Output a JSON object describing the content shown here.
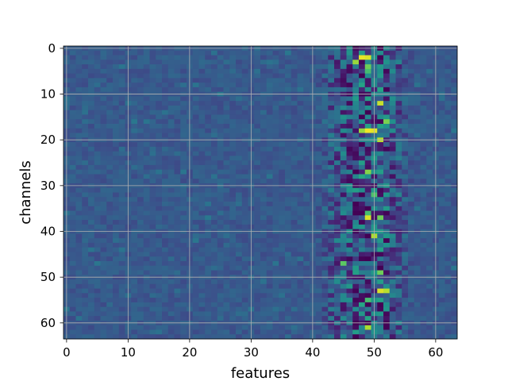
{
  "chart_data": {
    "type": "heatmap",
    "title": "",
    "xlabel": "features",
    "ylabel": "channels",
    "xlim": [
      -0.5,
      63.5
    ],
    "ylim": [
      63.5,
      -0.5
    ],
    "x_ticks": [
      0,
      10,
      20,
      30,
      40,
      50,
      60
    ],
    "y_ticks": [
      0,
      10,
      20,
      30,
      40,
      50,
      60
    ],
    "grid": true,
    "colormap": "viridis",
    "n_rows": 64,
    "n_cols": 64,
    "value_range": [
      0,
      1
    ],
    "background_level": 0.28,
    "high_variance_columns": [
      41,
      56
    ],
    "column_profile": {
      "41": 0.18,
      "42": 0.28,
      "43": 0.42,
      "44": 0.55,
      "45": 0.62,
      "46": 0.72,
      "47": 0.8,
      "48": 0.88,
      "49": 0.85,
      "50": 0.7,
      "51": 0.82,
      "52": 0.75,
      "53": 0.6,
      "54": 0.45,
      "55": 0.3,
      "56": 0.18
    },
    "bright_cells": [
      {
        "row": 2,
        "col": 48,
        "value": 0.97
      },
      {
        "row": 2,
        "col": 49,
        "value": 0.95
      },
      {
        "row": 3,
        "col": 47,
        "value": 0.85
      },
      {
        "row": 4,
        "col": 49,
        "value": 0.78
      },
      {
        "row": 5,
        "col": 49,
        "value": 0.7
      },
      {
        "row": 12,
        "col": 51,
        "value": 0.92
      },
      {
        "row": 16,
        "col": 52,
        "value": 0.8
      },
      {
        "row": 18,
        "col": 49,
        "value": 0.98
      },
      {
        "row": 18,
        "col": 50,
        "value": 0.96
      },
      {
        "row": 18,
        "col": 48,
        "value": 0.85
      },
      {
        "row": 20,
        "col": 51,
        "value": 0.9
      },
      {
        "row": 27,
        "col": 49,
        "value": 0.82
      },
      {
        "row": 32,
        "col": 50,
        "value": 0.72
      },
      {
        "row": 36,
        "col": 49,
        "value": 0.7
      },
      {
        "row": 37,
        "col": 49,
        "value": 0.95
      },
      {
        "row": 37,
        "col": 51,
        "value": 0.78
      },
      {
        "row": 41,
        "col": 50,
        "value": 0.88
      },
      {
        "row": 47,
        "col": 45,
        "value": 0.75
      },
      {
        "row": 49,
        "col": 51,
        "value": 0.78
      },
      {
        "row": 53,
        "col": 51,
        "value": 0.95
      },
      {
        "row": 53,
        "col": 52,
        "value": 0.9
      },
      {
        "row": 55,
        "col": 49,
        "value": 0.7
      },
      {
        "row": 61,
        "col": 49,
        "value": 0.88
      }
    ],
    "dark_cells": [
      {
        "row": 0,
        "col": 51,
        "value": 0.0
      },
      {
        "row": 3,
        "col": 48,
        "value": 0.02
      },
      {
        "row": 4,
        "col": 46,
        "value": 0.05
      },
      {
        "row": 7,
        "col": 45,
        "value": 0.04
      },
      {
        "row": 16,
        "col": 50,
        "value": 0.05
      },
      {
        "row": 35,
        "col": 47,
        "value": 0.03
      },
      {
        "row": 38,
        "col": 48,
        "value": 0.02
      },
      {
        "row": 55,
        "col": 48,
        "value": 0.03
      },
      {
        "row": 61,
        "col": 47,
        "value": 0.04
      }
    ]
  }
}
